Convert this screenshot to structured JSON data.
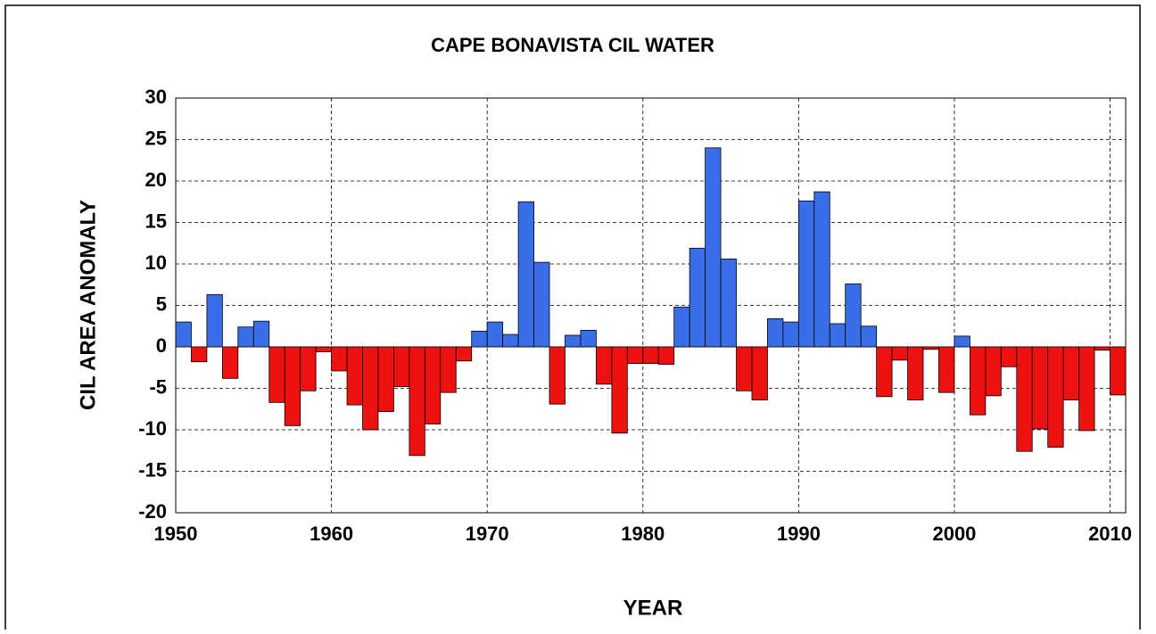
{
  "chart_data": {
    "type": "bar",
    "title": "CAPE BONAVISTA CIL WATER",
    "xlabel": "YEAR",
    "ylabel": "CIL AREA ANOMALY",
    "x": [
      1950,
      1951,
      1952,
      1953,
      1954,
      1955,
      1956,
      1957,
      1958,
      1959,
      1960,
      1961,
      1962,
      1963,
      1964,
      1965,
      1966,
      1967,
      1968,
      1969,
      1970,
      1971,
      1972,
      1973,
      1974,
      1975,
      1976,
      1977,
      1978,
      1979,
      1980,
      1981,
      1982,
      1983,
      1984,
      1985,
      1986,
      1987,
      1988,
      1989,
      1990,
      1991,
      1992,
      1993,
      1994,
      1995,
      1996,
      1997,
      1998,
      1999,
      2000,
      2001,
      2002,
      2003,
      2004,
      2005,
      2006,
      2007,
      2008,
      2009,
      2010
    ],
    "values": [
      3.0,
      -1.8,
      6.3,
      -3.8,
      2.4,
      3.1,
      -6.7,
      -9.5,
      -5.3,
      -0.6,
      -2.9,
      -7.0,
      -10.0,
      -7.8,
      -4.8,
      -13.1,
      -9.3,
      -5.5,
      -1.7,
      1.9,
      3.0,
      1.5,
      17.5,
      10.2,
      -6.9,
      1.4,
      2.0,
      -4.5,
      -10.4,
      -2.0,
      -2.0,
      -2.1,
      4.8,
      11.9,
      24.0,
      10.6,
      -5.3,
      -6.4,
      3.4,
      3.0,
      17.6,
      18.7,
      2.8,
      7.6,
      2.5,
      -6.0,
      -1.6,
      -6.4,
      -0.3,
      -5.5,
      1.3,
      -8.2,
      -5.9,
      -2.4,
      -12.6,
      -9.9,
      -12.1,
      -6.4,
      -10.1,
      -0.4,
      -5.8
    ],
    "color_positive": "#3a6ee8",
    "color_negative": "#ee1111",
    "xlim": [
      1950,
      2011
    ],
    "xticks": [
      1950,
      1960,
      1970,
      1980,
      1990,
      2000,
      2010
    ],
    "ylim": [
      -20,
      30
    ],
    "yticks": [
      -20,
      -15,
      -10,
      -5,
      0,
      5,
      10,
      15,
      20,
      25,
      30
    ],
    "grid": true
  }
}
